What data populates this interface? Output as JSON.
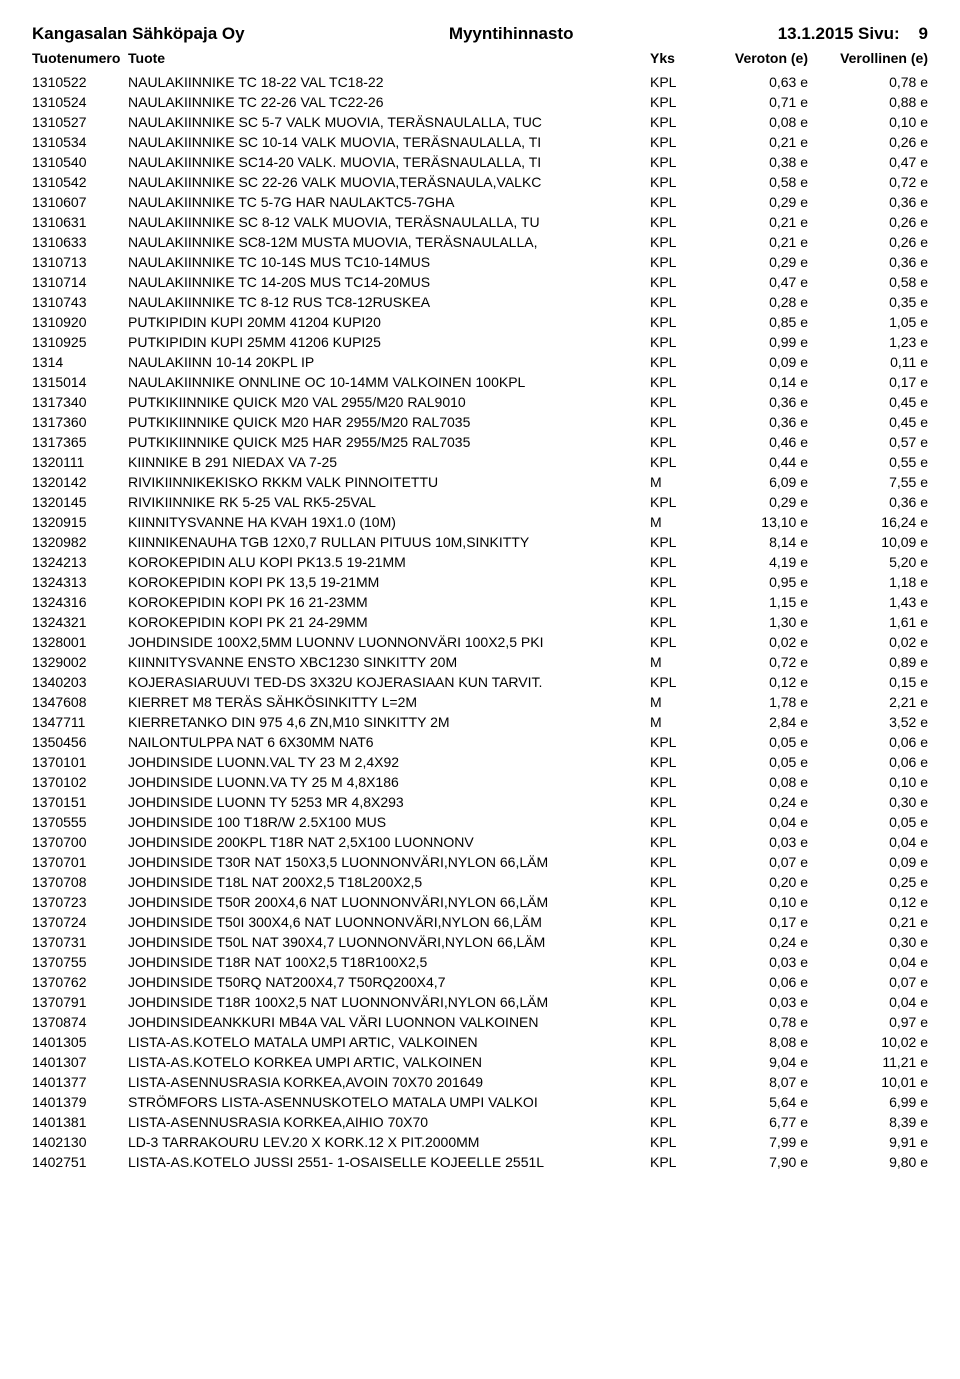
{
  "header": {
    "company": "Kangasalan Sähköpaja Oy",
    "title": "Myyntihinnasto",
    "date_page": "13.1.2015 Sivu:",
    "page_no": "9"
  },
  "columns": {
    "num": "Tuotenumero",
    "name": "Tuote",
    "unit": "Yks",
    "net": "Veroton (e)",
    "gross": "Verollinen (e)"
  },
  "rows": [
    {
      "num": "1310522",
      "name": "NAULAKIINNIKE TC 18-22 VAL TC18-22",
      "unit": "KPL",
      "net": "0,63 e",
      "gross": "0,78 e"
    },
    {
      "num": "1310524",
      "name": "NAULAKIINNIKE TC 22-26 VAL TC22-26",
      "unit": "KPL",
      "net": "0,71 e",
      "gross": "0,88 e"
    },
    {
      "num": "1310527",
      "name": "NAULAKIINNIKE SC 5-7 VALK MUOVIA, TERÄSNAULALLA, TUC",
      "unit": "KPL",
      "net": "0,08 e",
      "gross": "0,10 e"
    },
    {
      "num": "1310534",
      "name": "NAULAKIINNIKE SC 10-14 VALK MUOVIA, TERÄSNAULALLA, TI",
      "unit": "KPL",
      "net": "0,21 e",
      "gross": "0,26 e"
    },
    {
      "num": "1310540",
      "name": "NAULAKIINNIKE SC14-20 VALK. MUOVIA, TERÄSNAULALLA, TI",
      "unit": "KPL",
      "net": "0,38 e",
      "gross": "0,47 e"
    },
    {
      "num": "1310542",
      "name": "NAULAKIINNIKE SC 22-26 VALK MUOVIA,TERÄSNAULA,VALKC",
      "unit": "KPL",
      "net": "0,58 e",
      "gross": "0,72 e"
    },
    {
      "num": "1310607",
      "name": "NAULAKIINNIKE TC 5-7G HAR NAULAKTC5-7GHA",
      "unit": "KPL",
      "net": "0,29 e",
      "gross": "0,36 e"
    },
    {
      "num": "1310631",
      "name": "NAULAKIINNIKE SC 8-12 VALK MUOVIA, TERÄSNAULALLA, TU",
      "unit": "KPL",
      "net": "0,21 e",
      "gross": "0,26 e"
    },
    {
      "num": "1310633",
      "name": "NAULAKIINNIKE SC8-12M MUSTA MUOVIA, TERÄSNAULALLA,",
      "unit": "KPL",
      "net": "0,21 e",
      "gross": "0,26 e"
    },
    {
      "num": "1310713",
      "name": "NAULAKIINNIKE TC 10-14S MUS TC10-14MUS",
      "unit": "KPL",
      "net": "0,29 e",
      "gross": "0,36 e"
    },
    {
      "num": "1310714",
      "name": "NAULAKIINNIKE TC 14-20S MUS TC14-20MUS",
      "unit": "KPL",
      "net": "0,47 e",
      "gross": "0,58 e"
    },
    {
      "num": "1310743",
      "name": "NAULAKIINNIKE TC 8-12 RUS TC8-12RUSKEA",
      "unit": "KPL",
      "net": "0,28 e",
      "gross": "0,35 e"
    },
    {
      "num": "1310920",
      "name": "PUTKIPIDIN KUPI 20MM 41204 KUPI20",
      "unit": "KPL",
      "net": "0,85 e",
      "gross": "1,05 e"
    },
    {
      "num": "1310925",
      "name": "PUTKIPIDIN KUPI 25MM 41206 KUPI25",
      "unit": "KPL",
      "net": "0,99 e",
      "gross": "1,23 e"
    },
    {
      "num": "1314",
      "name": "NAULAKIINN 10-14 20KPL IP",
      "unit": "KPL",
      "net": "0,09 e",
      "gross": "0,11 e"
    },
    {
      "num": "1315014",
      "name": "NAULAKIINNIKE ONNLINE OC 10-14MM VALKOINEN 100KPL",
      "unit": "KPL",
      "net": "0,14 e",
      "gross": "0,17 e"
    },
    {
      "num": "1317340",
      "name": "PUTKIKIINNIKE QUICK M20 VAL 2955/M20 RAL9010",
      "unit": "KPL",
      "net": "0,36 e",
      "gross": "0,45 e"
    },
    {
      "num": "1317360",
      "name": "PUTKIKIINNIKE QUICK M20 HAR 2955/M20 RAL7035",
      "unit": "KPL",
      "net": "0,36 e",
      "gross": "0,45 e"
    },
    {
      "num": "1317365",
      "name": "PUTKIKIINNIKE QUICK M25 HAR 2955/M25 RAL7035",
      "unit": "KPL",
      "net": "0,46 e",
      "gross": "0,57 e"
    },
    {
      "num": "1320111",
      "name": "KIINNIKE B 291 NIEDAX VA 7-25",
      "unit": "KPL",
      "net": "0,44 e",
      "gross": "0,55 e"
    },
    {
      "num": "1320142",
      "name": "RIVIKIINNIKEKISKO RKKM VALK PINNOITETTU",
      "unit": "M",
      "net": "6,09 e",
      "gross": "7,55 e"
    },
    {
      "num": "1320145",
      "name": "RIVIKIINNIKE RK 5-25 VAL RK5-25VAL",
      "unit": "KPL",
      "net": "0,29 e",
      "gross": "0,36 e"
    },
    {
      "num": "1320915",
      "name": "KIINNITYSVANNE HA KVAH 19X1.0 (10M)",
      "unit": "M",
      "net": "13,10 e",
      "gross": "16,24 e"
    },
    {
      "num": "1320982",
      "name": "KIINNIKENAUHA TGB 12X0,7 RULLAN PITUUS 10M,SINKITTY",
      "unit": "KPL",
      "net": "8,14 e",
      "gross": "10,09 e"
    },
    {
      "num": "1324213",
      "name": "KOROKEPIDIN ALU KOPI PK13.5 19-21MM",
      "unit": "KPL",
      "net": "4,19 e",
      "gross": "5,20 e"
    },
    {
      "num": "1324313",
      "name": "KOROKEPIDIN KOPI PK 13,5 19-21MM",
      "unit": "KPL",
      "net": "0,95 e",
      "gross": "1,18 e"
    },
    {
      "num": "1324316",
      "name": "KOROKEPIDIN KOPI PK 16 21-23MM",
      "unit": "KPL",
      "net": "1,15 e",
      "gross": "1,43 e"
    },
    {
      "num": "1324321",
      "name": "KOROKEPIDIN KOPI PK 21 24-29MM",
      "unit": "KPL",
      "net": "1,30 e",
      "gross": "1,61 e"
    },
    {
      "num": "1328001",
      "name": "JOHDINSIDE 100X2,5MM LUONNV LUONNONVÄRI 100X2,5 PKI",
      "unit": "KPL",
      "net": "0,02 e",
      "gross": "0,02 e"
    },
    {
      "num": "1329002",
      "name": "KIINNITYSVANNE ENSTO XBC1230 SINKITTY 20M",
      "unit": "M",
      "net": "0,72 e",
      "gross": "0,89 e"
    },
    {
      "num": "1340203",
      "name": "KOJERASIARUUVI TED-DS 3X32U KOJERASIAAN KUN TARVIT.",
      "unit": "KPL",
      "net": "0,12 e",
      "gross": "0,15 e"
    },
    {
      "num": "1347608",
      "name": "KIERRET M8 TERÄS SÄHKÖSINKITTY L=2M",
      "unit": "M",
      "net": "1,78 e",
      "gross": "2,21 e"
    },
    {
      "num": "1347711",
      "name": "KIERRETANKO DIN 975 4,6 ZN,M10 SINKITTY 2M",
      "unit": "M",
      "net": "2,84 e",
      "gross": "3,52 e"
    },
    {
      "num": "1350456",
      "name": "NAILONTULPPA NAT 6 6X30MM NAT6",
      "unit": "KPL",
      "net": "0,05 e",
      "gross": "0,06 e"
    },
    {
      "num": "1370101",
      "name": "JOHDINSIDE LUONN.VAL TY 23 M 2,4X92",
      "unit": "KPL",
      "net": "0,05 e",
      "gross": "0,06 e"
    },
    {
      "num": "1370102",
      "name": "JOHDINSIDE LUONN.VA TY 25 M 4,8X186",
      "unit": "KPL",
      "net": "0,08 e",
      "gross": "0,10 e"
    },
    {
      "num": "1370151",
      "name": "JOHDINSIDE LUONN TY 5253 MR 4,8X293",
      "unit": "KPL",
      "net": "0,24 e",
      "gross": "0,30 e"
    },
    {
      "num": "1370555",
      "name": "JOHDINSIDE   100 T18R/W 2.5X100 MUS",
      "unit": "KPL",
      "net": "0,04 e",
      "gross": "0,05 e"
    },
    {
      "num": "1370700",
      "name": "JOHDINSIDE 200KPL T18R NAT 2,5X100 LUONNONV",
      "unit": "KPL",
      "net": "0,03 e",
      "gross": "0,04 e"
    },
    {
      "num": "1370701",
      "name": "JOHDINSIDE T30R NAT 150X3,5 LUONNONVÄRI,NYLON 66,LÄM",
      "unit": "KPL",
      "net": "0,07 e",
      "gross": "0,09 e"
    },
    {
      "num": "1370708",
      "name": "JOHDINSIDE T18L NAT 200X2,5 T18L200X2,5",
      "unit": "KPL",
      "net": "0,20 e",
      "gross": "0,25 e"
    },
    {
      "num": "1370723",
      "name": "JOHDINSIDE T50R 200X4,6 NAT LUONNONVÄRI,NYLON 66,LÄM",
      "unit": "KPL",
      "net": "0,10 e",
      "gross": "0,12 e"
    },
    {
      "num": "1370724",
      "name": "JOHDINSIDE T50I 300X4,6 NAT LUONNONVÄRI,NYLON 66,LÄM",
      "unit": "KPL",
      "net": "0,17 e",
      "gross": "0,21 e"
    },
    {
      "num": "1370731",
      "name": "JOHDINSIDE T50L NAT 390X4,7 LUONNONVÄRI,NYLON 66,LÄM",
      "unit": "KPL",
      "net": "0,24 e",
      "gross": "0,30 e"
    },
    {
      "num": "1370755",
      "name": "JOHDINSIDE T18R NAT 100X2,5 T18R100X2,5",
      "unit": "KPL",
      "net": "0,03 e",
      "gross": "0,04 e"
    },
    {
      "num": "1370762",
      "name": "JOHDINSIDE T50RQ NAT200X4,7 T50RQ200X4,7",
      "unit": "KPL",
      "net": "0,06 e",
      "gross": "0,07 e"
    },
    {
      "num": "1370791",
      "name": "JOHDINSIDE T18R 100X2,5 NAT LUONNONVÄRI,NYLON 66,LÄM",
      "unit": "KPL",
      "net": "0,03 e",
      "gross": "0,04 e"
    },
    {
      "num": "1370874",
      "name": "JOHDINSIDEANKKURI MB4A VAL VÄRI LUONNON VALKOINEN",
      "unit": "KPL",
      "net": "0,78 e",
      "gross": "0,97 e"
    },
    {
      "num": "1401305",
      "name": "LISTA-AS.KOTELO MATALA UMPI ARTIC, VALKOINEN",
      "unit": "KPL",
      "net": "8,08 e",
      "gross": "10,02 e"
    },
    {
      "num": "1401307",
      "name": "LISTA-AS.KOTELO KORKEA UMPI ARTIC, VALKOINEN",
      "unit": "KPL",
      "net": "9,04 e",
      "gross": "11,21 e"
    },
    {
      "num": "1401377",
      "name": "LISTA-ASENNUSRASIA KORKEA,AVOIN 70X70 201649",
      "unit": "KPL",
      "net": "8,07 e",
      "gross": "10,01 e"
    },
    {
      "num": "1401379",
      "name": "STRÖMFORS LISTA-ASENNUSKOTELO MATALA UMPI VALKOI",
      "unit": "KPL",
      "net": "5,64 e",
      "gross": "6,99 e"
    },
    {
      "num": "1401381",
      "name": "LISTA-ASENNUSRASIA KORKEA,AIHIO 70X70",
      "unit": "KPL",
      "net": "6,77 e",
      "gross": "8,39 e"
    },
    {
      "num": "1402130",
      "name": "LD-3 TARRAKOURU LEV.20 X KORK.12 X PIT.2000MM",
      "unit": "KPL",
      "net": "7,99 e",
      "gross": "9,91 e"
    },
    {
      "num": "1402751",
      "name": "LISTA-AS.KOTELO JUSSI 2551- 1-OSAISELLE KOJEELLE 2551L",
      "unit": "KPL",
      "net": "7,90 e",
      "gross": "9,80 e"
    }
  ]
}
